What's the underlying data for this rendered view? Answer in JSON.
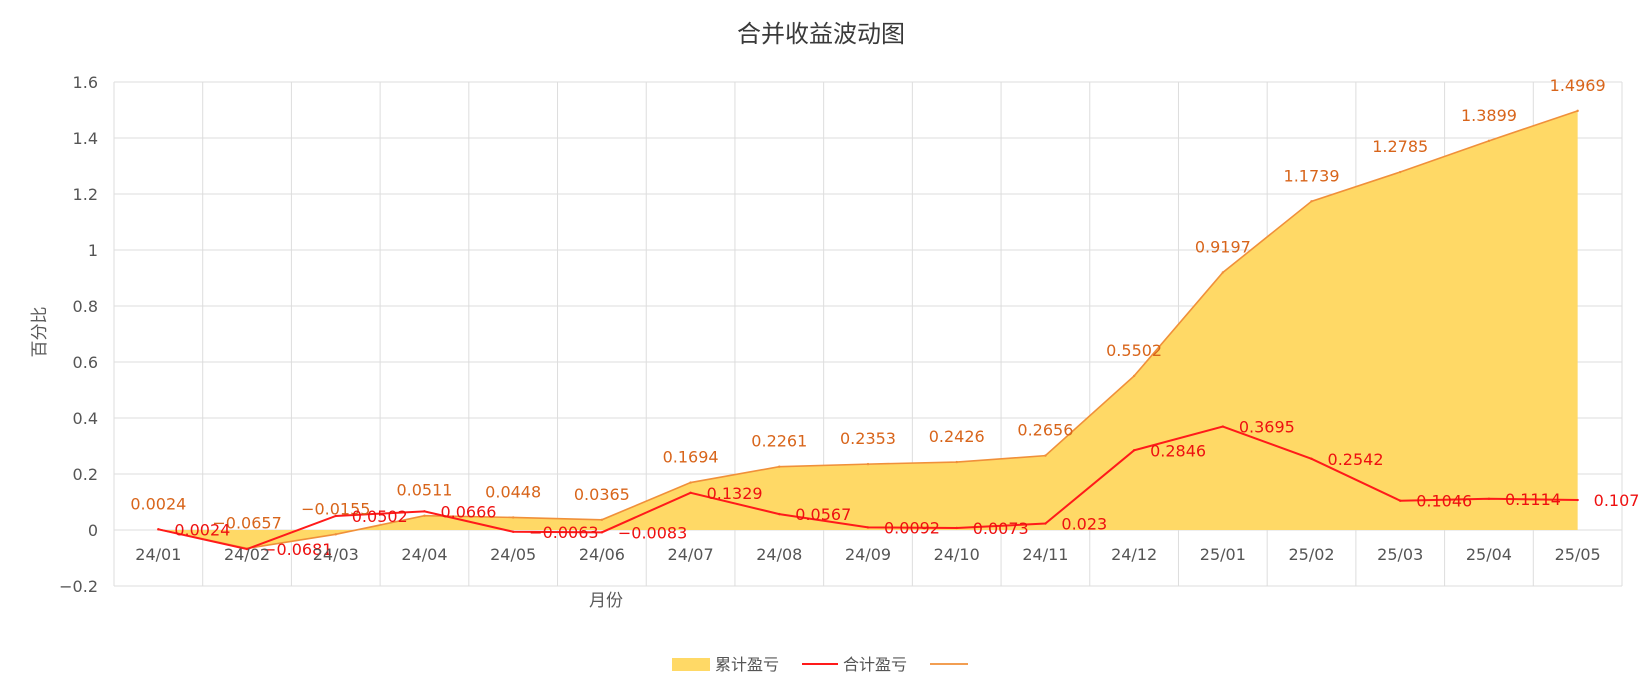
{
  "chart_data": {
    "type": "area",
    "title": "合并收益波动图",
    "xlabel": "月份",
    "ylabel": "百分比",
    "categories": [
      "24/01",
      "24/02",
      "24/03",
      "24/04",
      "24/05",
      "24/06",
      "24/07",
      "24/08",
      "24/09",
      "24/10",
      "24/11",
      "24/12",
      "25/01",
      "25/02",
      "25/03",
      "25/04",
      "25/05"
    ],
    "ylim": [
      -0.2,
      1.6
    ],
    "yticks": [
      "−0.2",
      "0",
      "0.2",
      "0.4",
      "0.6",
      "0.8",
      "1",
      "1.2",
      "1.4",
      "1.6"
    ],
    "ytick_values": [
      -0.2,
      0,
      0.2,
      0.4,
      0.6,
      0.8,
      1,
      1.2,
      1.4,
      1.6
    ],
    "grid": true,
    "legend_position": "bottom",
    "series": [
      {
        "name": "累计盈亏",
        "kind": "area",
        "fill_color": "#ffd966",
        "line_color": "#f0903a",
        "label_color": "#d8651b",
        "values": [
          0.0024,
          -0.0657,
          -0.0155,
          0.0511,
          0.0448,
          0.0365,
          0.1694,
          0.2261,
          0.2353,
          0.2426,
          0.2656,
          0.5502,
          0.9197,
          1.1739,
          1.2785,
          1.3899,
          1.4969
        ],
        "labels": [
          "0.0024",
          "−0.0657",
          "−0.0155",
          "0.0511",
          "0.0448",
          "0.0365",
          "0.1694",
          "0.2261",
          "0.2353",
          "0.2426",
          "0.2656",
          "0.5502",
          "0.9197",
          "1.1739",
          "1.2785",
          "1.3899",
          "1.4969"
        ]
      },
      {
        "name": "合计盈亏",
        "kind": "line",
        "line_color": "#ff1a1a",
        "label_color": "#ee1010",
        "values": [
          0.0024,
          -0.0681,
          0.0502,
          0.0666,
          -0.0063,
          -0.0083,
          0.1329,
          0.0567,
          0.0092,
          0.0073,
          0.023,
          0.2846,
          0.3695,
          0.2542,
          0.1046,
          0.1114,
          0.107
        ],
        "labels": [
          "0.0024",
          "−0.0681",
          "0.0502",
          "0.0666",
          "−0.0063",
          "−0.0083",
          "0.1329",
          "0.0567",
          "0.0092",
          "0.0073",
          "0.023",
          "0.2846",
          "0.3695",
          "0.2542",
          "0.1046",
          "0.1114",
          "0.107"
        ]
      },
      {
        "name": "",
        "kind": "legend-only",
        "line_color": "#f0903a"
      }
    ]
  },
  "colors": {
    "grid": "#dddddd",
    "axis_text": "#555555",
    "title": "#3a3a3a"
  }
}
